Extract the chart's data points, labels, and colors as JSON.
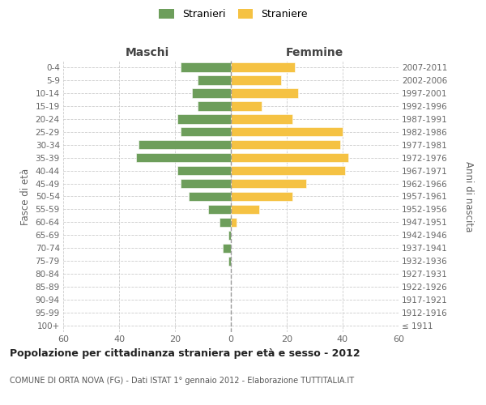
{
  "age_groups": [
    "100+",
    "95-99",
    "90-94",
    "85-89",
    "80-84",
    "75-79",
    "70-74",
    "65-69",
    "60-64",
    "55-59",
    "50-54",
    "45-49",
    "40-44",
    "35-39",
    "30-34",
    "25-29",
    "20-24",
    "15-19",
    "10-14",
    "5-9",
    "0-4"
  ],
  "birth_years": [
    "≤ 1911",
    "1912-1916",
    "1917-1921",
    "1922-1926",
    "1927-1931",
    "1932-1936",
    "1937-1941",
    "1942-1946",
    "1947-1951",
    "1952-1956",
    "1957-1961",
    "1962-1966",
    "1967-1971",
    "1972-1976",
    "1977-1981",
    "1982-1986",
    "1987-1991",
    "1992-1996",
    "1997-2001",
    "2002-2006",
    "2007-2011"
  ],
  "males": [
    0,
    0,
    0,
    0,
    0,
    1,
    3,
    1,
    4,
    8,
    15,
    18,
    19,
    34,
    33,
    18,
    19,
    12,
    14,
    12,
    18
  ],
  "females": [
    0,
    0,
    0,
    0,
    0,
    0,
    0,
    0,
    2,
    10,
    22,
    27,
    41,
    42,
    39,
    40,
    22,
    11,
    24,
    18,
    23
  ],
  "male_color": "#6d9e5b",
  "female_color": "#f5c243",
  "title": "Popolazione per cittadinanza straniera per età e sesso - 2012",
  "subtitle": "COMUNE DI ORTA NOVA (FG) - Dati ISTAT 1° gennaio 2012 - Elaborazione TUTTITALIA.IT",
  "label_maschi": "Maschi",
  "label_femmine": "Femmine",
  "ylabel_left": "Fasce di età",
  "ylabel_right": "Anni di nascita",
  "legend_male": "Stranieri",
  "legend_female": "Straniere",
  "xlim": 60,
  "xtick_vals": [
    -60,
    -40,
    -20,
    0,
    20,
    40,
    60
  ],
  "xtick_labels": [
    "60",
    "40",
    "20",
    "0",
    "20",
    "40",
    "60"
  ],
  "grid_color": "#cccccc",
  "spine_color": "#cccccc"
}
